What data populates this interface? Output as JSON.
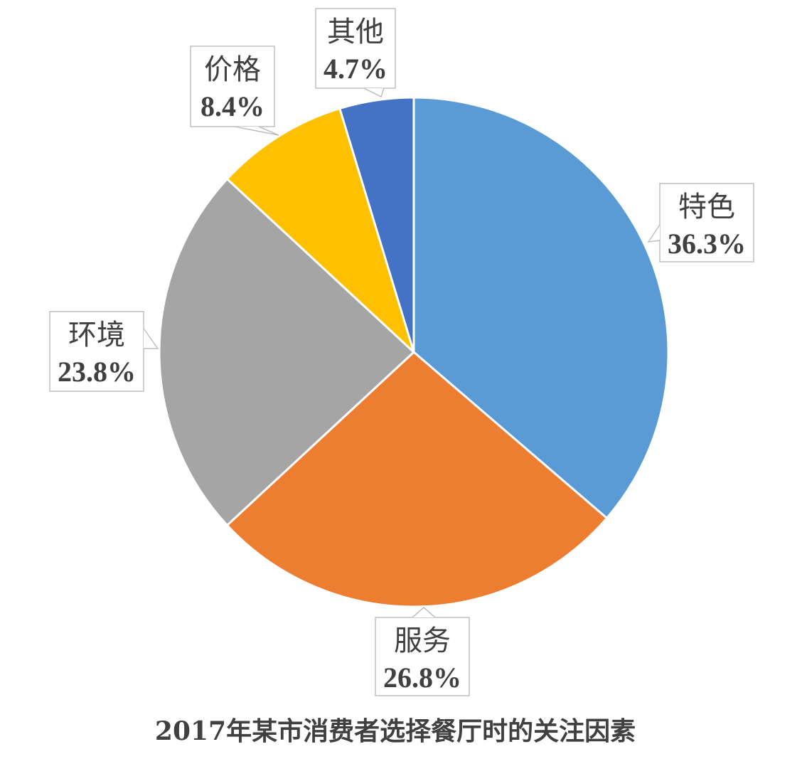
{
  "chart_data": {
    "type": "pie",
    "title": "2017年某市消费者选择餐厅时的关注因素",
    "legend": "none",
    "slices": [
      {
        "label": "特色",
        "value": 36.3,
        "display": "36.3%",
        "color": "#5B9BD5"
      },
      {
        "label": "服务",
        "value": 26.8,
        "display": "26.8%",
        "color": "#ED7D31"
      },
      {
        "label": "环境",
        "value": 23.8,
        "display": "23.8%",
        "color": "#A5A5A5"
      },
      {
        "label": "价格",
        "value": 8.4,
        "display": "8.4%",
        "color": "#FFC000"
      },
      {
        "label": "其他",
        "value": 4.7,
        "display": "4.7%",
        "color": "#4472C4"
      }
    ]
  }
}
